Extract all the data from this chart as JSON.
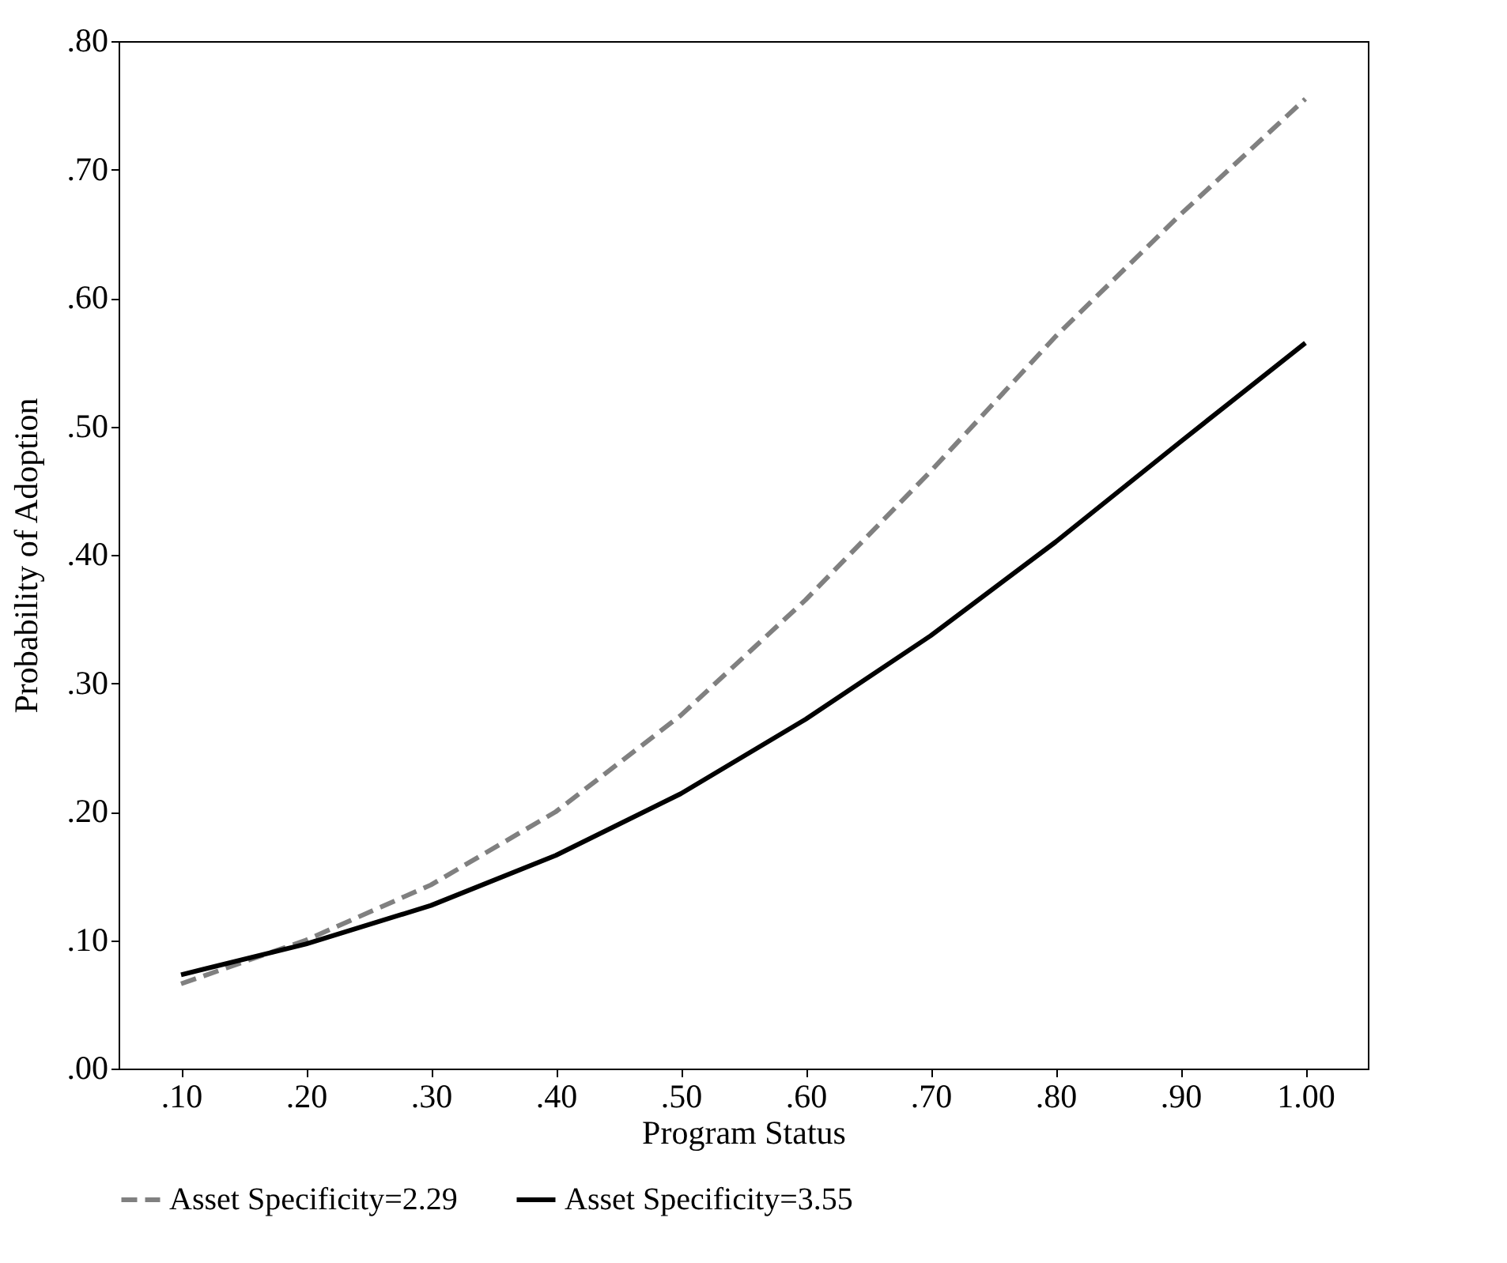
{
  "chart_data": {
    "type": "line",
    "xlabel": "Program Status",
    "ylabel": "Probability of Adoption",
    "categories": [
      ".10",
      ".20",
      ".30",
      ".40",
      ".50",
      ".60",
      ".70",
      ".80",
      ".90",
      "1.00"
    ],
    "series": [
      {
        "name": "Asset Specificity=2.29",
        "color": "#808080",
        "line_style": "dashed",
        "values": [
          0.066,
          0.1,
          0.143,
          0.2,
          0.275,
          0.365,
          0.465,
          0.57,
          0.665,
          0.755
        ]
      },
      {
        "name": "Asset Specificity=3.55",
        "color": "#000000",
        "line_style": "solid",
        "values": [
          0.073,
          0.097,
          0.127,
          0.166,
          0.214,
          0.272,
          0.337,
          0.41,
          0.488,
          0.565
        ]
      }
    ],
    "ylim": [
      0,
      0.8
    ],
    "yticks": [
      {
        "value": 0,
        "label": ".00"
      },
      {
        "value": 0.1,
        "label": ".10"
      },
      {
        "value": 0.2,
        "label": ".20"
      },
      {
        "value": 0.3,
        "label": ".30"
      },
      {
        "value": 0.4,
        "label": ".40"
      },
      {
        "value": 0.5,
        "label": ".50"
      },
      {
        "value": 0.6,
        "label": ".60"
      },
      {
        "value": 0.7,
        "label": ".70"
      },
      {
        "value": 0.8,
        "label": ".80"
      }
    ],
    "grid": false,
    "legend": "bottom",
    "marker": "none"
  }
}
